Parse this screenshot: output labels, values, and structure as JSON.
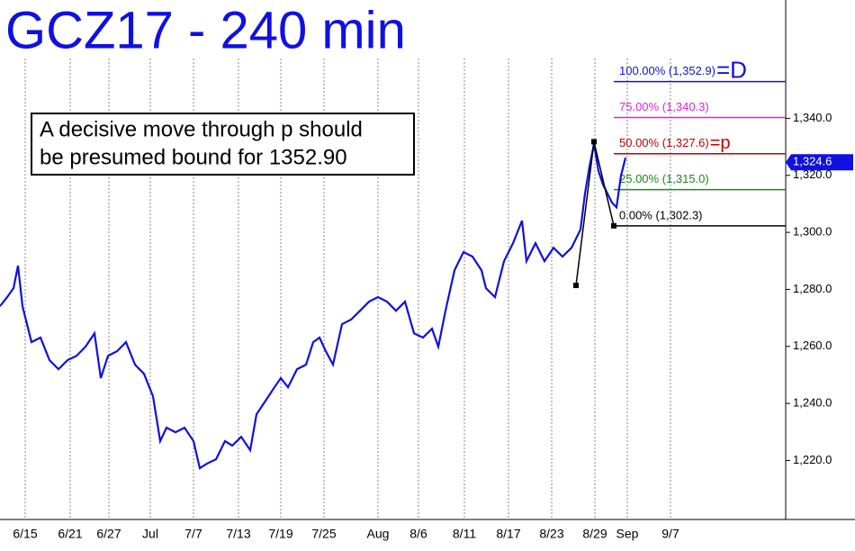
{
  "chart_data": {
    "type": "line",
    "title": "GCZ17 - 240 min",
    "annotation": [
      "A decisive move through p should",
      "be presumed bound for 1352.90"
    ],
    "xlim": [
      0,
      174.6
    ],
    "ylim": [
      1199.3,
      1381.5
    ],
    "xticks": [
      {
        "value": 5.6,
        "label": "6/15"
      },
      {
        "value": 15.6,
        "label": "6/21"
      },
      {
        "value": 24.2,
        "label": "6/27"
      },
      {
        "value": 33.4,
        "label": "Jul"
      },
      {
        "value": 43,
        "label": "7/7"
      },
      {
        "value": 53,
        "label": "7/13"
      },
      {
        "value": 62.4,
        "label": "7/19"
      },
      {
        "value": 72,
        "label": "7/25"
      },
      {
        "value": 84,
        "label": "Aug"
      },
      {
        "value": 93,
        "label": "8/6"
      },
      {
        "value": 103.2,
        "label": "8/11"
      },
      {
        "value": 113,
        "label": "8/17"
      },
      {
        "value": 122.6,
        "label": "8/23"
      },
      {
        "value": 132.2,
        "label": "8/29"
      },
      {
        "value": 139.4,
        "label": "Sep"
      },
      {
        "value": 149,
        "label": "9/7"
      }
    ],
    "yticks": [
      {
        "value": 1220,
        "label": "1,220.0"
      },
      {
        "value": 1240,
        "label": "1,240.0"
      },
      {
        "value": 1260,
        "label": "1,260.0"
      },
      {
        "value": 1280,
        "label": "1,280.0"
      },
      {
        "value": 1300,
        "label": "1,300.0"
      },
      {
        "value": 1320,
        "label": "1,320.0"
      },
      {
        "value": 1340,
        "label": "1,340.0"
      }
    ],
    "grid": true,
    "color": "#1010e0",
    "x": [
      0,
      1.6,
      3,
      4,
      5,
      7,
      9,
      11,
      13,
      15,
      17,
      19,
      21,
      22.4,
      24,
      26,
      28,
      30,
      32,
      34,
      35.6,
      37,
      39,
      41,
      43,
      44.4,
      46,
      48,
      50,
      51.6,
      53.6,
      55.6,
      57,
      59,
      61,
      62.4,
      64,
      66,
      68,
      69.6,
      71,
      72.4,
      74,
      76,
      78,
      80,
      82,
      84,
      86,
      88,
      90,
      92,
      94,
      96,
      97.4,
      99,
      101,
      103,
      105,
      107,
      108,
      110,
      112,
      114,
      116,
      117,
      119,
      121,
      123,
      125,
      127,
      129,
      130,
      131,
      132,
      133,
      134,
      135,
      136,
      137,
      138,
      139
    ],
    "values": [
      1274.1,
      1277.3,
      1280.4,
      1288.3,
      1274.1,
      1261.5,
      1263.1,
      1255.2,
      1252.0,
      1255.2,
      1256.7,
      1259.9,
      1264.6,
      1248.9,
      1256.7,
      1258.3,
      1261.5,
      1253.6,
      1250.4,
      1242.5,
      1226.8,
      1231.5,
      1229.9,
      1231.5,
      1226.8,
      1217.3,
      1218.9,
      1220.4,
      1226.8,
      1225.2,
      1228.3,
      1223.6,
      1236.2,
      1240.9,
      1245.7,
      1248.9,
      1245.7,
      1252.0,
      1253.6,
      1261.5,
      1263.1,
      1258.3,
      1253.6,
      1267.8,
      1269.4,
      1272.5,
      1275.7,
      1277.3,
      1275.7,
      1272.5,
      1275.7,
      1264.6,
      1263.1,
      1266.2,
      1259.9,
      1272.5,
      1286.7,
      1293.1,
      1291.5,
      1286.7,
      1280.4,
      1277.3,
      1289.9,
      1296.2,
      1304.1,
      1289.9,
      1296.2,
      1289.9,
      1294.6,
      1291.5,
      1294.6,
      1301.0,
      1313.6,
      1323.1,
      1331.0,
      1321.5,
      1316.8,
      1313.6,
      1310.4,
      1308.8,
      1319.9,
      1326.2
    ],
    "swings": {
      "color": "#000000",
      "x": [
        128,
        132,
        136.4
      ],
      "values": [
        1281.4,
        1331.8,
        1302.3
      ]
    },
    "last_price": {
      "value": 1324.6,
      "label": "1,324.6"
    },
    "levels": [
      {
        "label": "100.00% (1,352.9)",
        "value": 1352.9,
        "color": "#1010e0",
        "tag": "=D"
      },
      {
        "label": "75.00% (1,340.3)",
        "value": 1340.3,
        "color": "#e020e0"
      },
      {
        "label": "50.00% (1,327.6)",
        "value": 1327.6,
        "color": "#c00000",
        "tag": "=p"
      },
      {
        "label": "25.00% (1,315.0)",
        "value": 1315.0,
        "color": "#1a8a1a"
      },
      {
        "label": "0.00% (1,302.3)",
        "value": 1302.3,
        "color": "#000000"
      }
    ]
  }
}
